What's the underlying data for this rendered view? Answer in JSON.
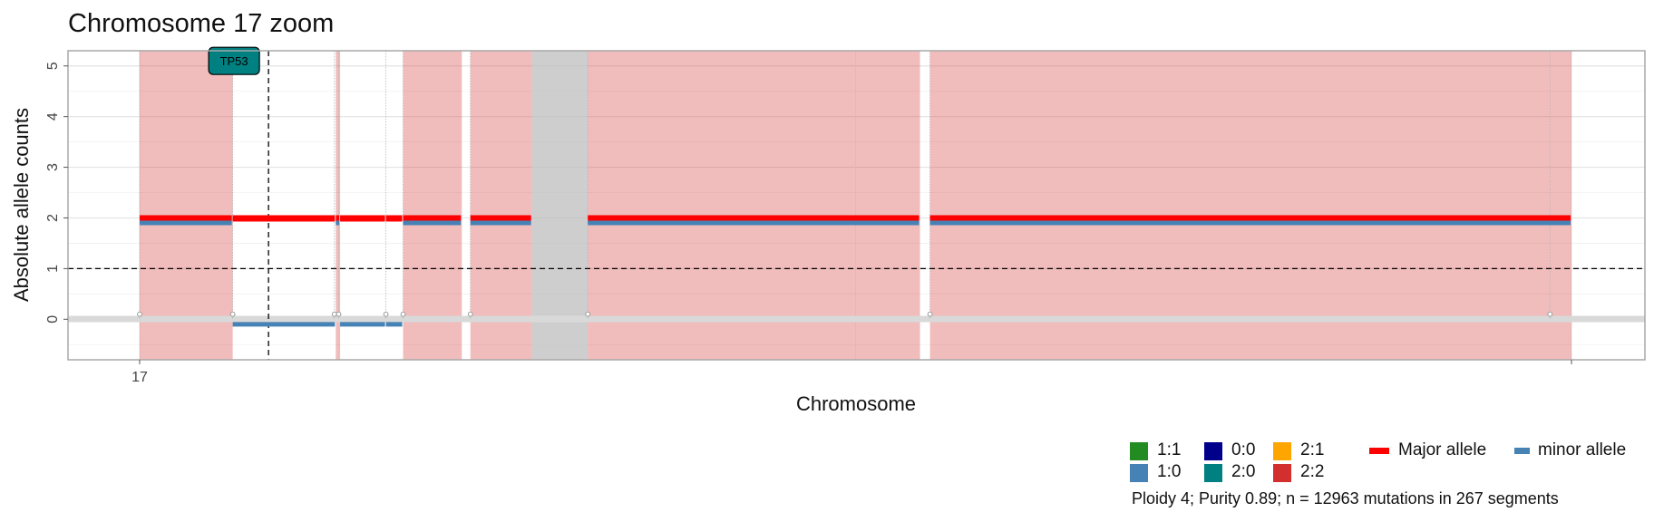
{
  "chart_data": {
    "type": "segment",
    "title": "Chromosome 17 zoom",
    "xlabel": "Chromosome",
    "ylabel": "Absolute allele counts",
    "x_tick_labels": [
      "17"
    ],
    "y_ticks": [
      0,
      1,
      2,
      3,
      4,
      5
    ],
    "ylim": [
      -0.8,
      5.3
    ],
    "xlim": [
      -0.05,
      1.05
    ],
    "grid": true,
    "ploidy_reference_line": 1,
    "gene_marker": {
      "label": "TP53",
      "position": 0.09,
      "color": "#008080"
    },
    "segment_shading": [
      {
        "start": 0.0,
        "end": 0.065,
        "karyotype": "2:0"
      },
      {
        "start": 0.137,
        "end": 0.14,
        "karyotype": "2:0"
      },
      {
        "start": 0.184,
        "end": 0.225,
        "karyotype": "2:0"
      },
      {
        "start": 0.231,
        "end": 0.274,
        "karyotype": "2:0"
      },
      {
        "start": 0.274,
        "end": 0.313,
        "karyotype": "0:0"
      },
      {
        "start": 0.313,
        "end": 0.545,
        "karyotype": "2:0"
      },
      {
        "start": 0.552,
        "end": 1.0,
        "karyotype": "2:0"
      }
    ],
    "segments": [
      {
        "start": 0.0,
        "end": 0.065,
        "major": 2,
        "minor": 0
      },
      {
        "start": 0.065,
        "end": 0.137,
        "major": 2,
        "minor": -0.1
      },
      {
        "start": 0.137,
        "end": 0.14,
        "major": 2,
        "minor": 0
      },
      {
        "start": 0.14,
        "end": 0.172,
        "major": 2,
        "minor": -0.1
      },
      {
        "start": 0.172,
        "end": 0.184,
        "major": 2,
        "minor": -0.1
      },
      {
        "start": 0.184,
        "end": 0.225,
        "major": 2,
        "minor": 0
      },
      {
        "start": 0.231,
        "end": 0.274,
        "major": 2,
        "minor": 0
      },
      {
        "start": 0.313,
        "end": 0.545,
        "major": 2,
        "minor": 0
      },
      {
        "start": 0.552,
        "end": 1.0,
        "major": 2,
        "minor": 0
      }
    ],
    "breakpoints": [
      0.0,
      0.065,
      0.136,
      0.139,
      0.172,
      0.184,
      0.231,
      0.313,
      0.552,
      0.985
    ],
    "legend": {
      "karyotypes": [
        {
          "label": "1:1",
          "color": "#228B22"
        },
        {
          "label": "1:0",
          "color": "#4682B4"
        },
        {
          "label": "0:0",
          "color": "#00008B"
        },
        {
          "label": "2:0",
          "color": "#008080"
        },
        {
          "label": "2:1",
          "color": "#FFA500"
        },
        {
          "label": "2:2",
          "color": "#D32F2F"
        }
      ],
      "alleles": [
        {
          "label": "Major allele",
          "color": "#FF0000"
        },
        {
          "label": "minor allele",
          "color": "#4682B4"
        }
      ]
    },
    "caption": "Ploidy 4; Purity  0.89; n = 12963 mutations in 267 segments"
  }
}
